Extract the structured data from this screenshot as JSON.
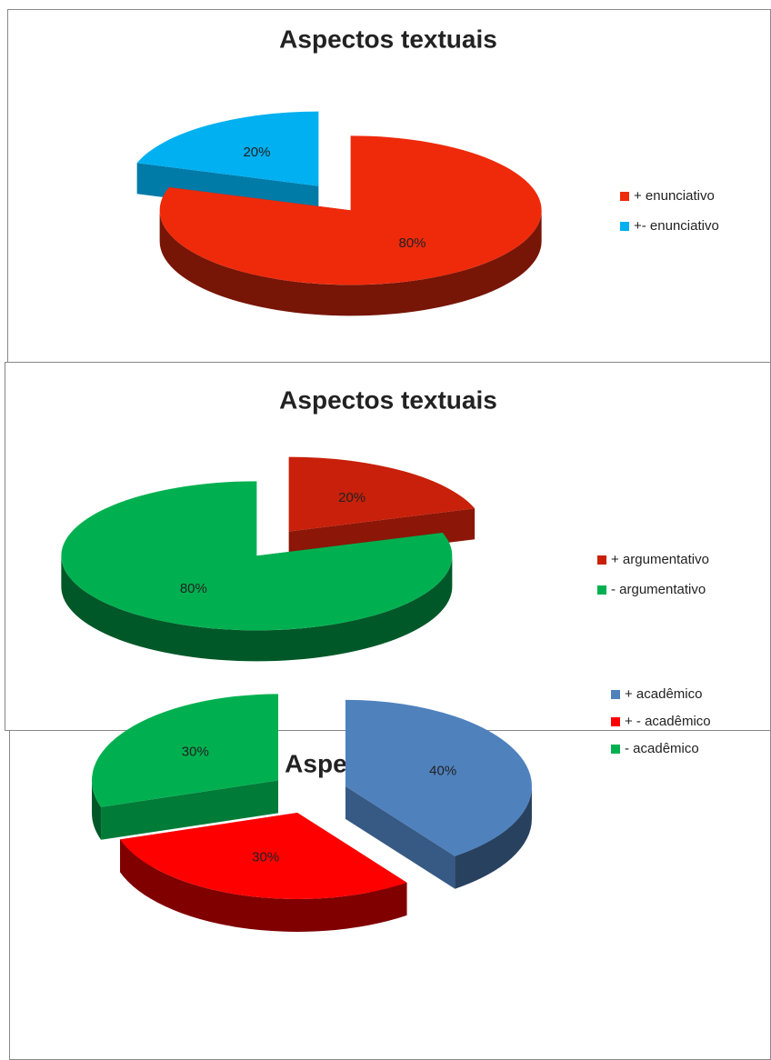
{
  "chart_data": [
    {
      "type": "pie",
      "title": "Aspectos textuais",
      "categories": [
        "+ enunciativo",
        "+- enunciativo"
      ],
      "values": [
        80,
        20
      ],
      "value_labels": [
        "80%",
        "20%"
      ],
      "colors": [
        "#ee2a0b",
        "#00b0f0"
      ]
    },
    {
      "type": "pie",
      "title": "Aspectos textuais",
      "categories": [
        "+ argumentativo",
        "- argumentativo"
      ],
      "values": [
        20,
        80
      ],
      "value_labels": [
        "20%",
        "80%"
      ],
      "colors": [
        "#c8200a",
        "#00b050"
      ]
    },
    {
      "type": "pie",
      "title": "Aspectos textuais",
      "categories": [
        "+ acadêmico",
        "+ - acadêmico",
        "- acadêmico"
      ],
      "values": [
        40,
        30,
        30
      ],
      "value_labels": [
        "40%",
        "30%",
        "30%"
      ],
      "colors": [
        "#4f81bd",
        "#ff0000",
        "#00b050"
      ]
    }
  ]
}
